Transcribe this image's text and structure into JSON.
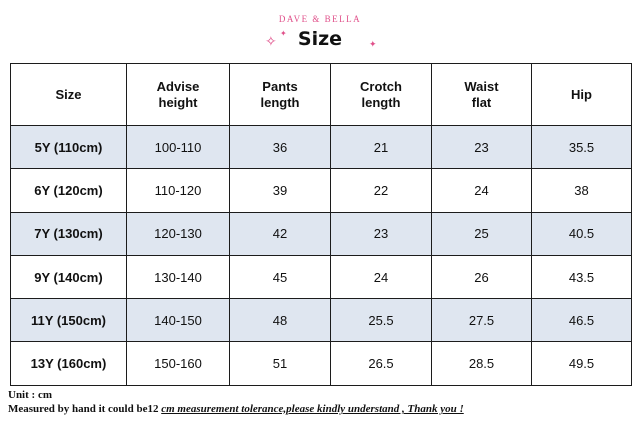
{
  "header": {
    "brand": "DAVE & BELLA",
    "title": "Size",
    "accent_color": "#e0508a"
  },
  "table": {
    "columns": [
      [
        "Size"
      ],
      [
        "Advise",
        "height"
      ],
      [
        "Pants",
        "length"
      ],
      [
        "Crotch",
        "length"
      ],
      [
        "Waist",
        "flat"
      ],
      [
        "Hip"
      ]
    ],
    "rows": [
      [
        "5Y (110cm)",
        "100-110",
        "36",
        "21",
        "23",
        "35.5"
      ],
      [
        "6Y (120cm)",
        "110-120",
        "39",
        "22",
        "24",
        "38"
      ],
      [
        "7Y (130cm)",
        "120-130",
        "42",
        "23",
        "25",
        "40.5"
      ],
      [
        "9Y (140cm)",
        "130-140",
        "45",
        "24",
        "26",
        "43.5"
      ],
      [
        "11Y (150cm)",
        "140-150",
        "48",
        "25.5",
        "27.5",
        "46.5"
      ],
      [
        "13Y (160cm)",
        "150-160",
        "51",
        "26.5",
        "28.5",
        "49.5"
      ]
    ],
    "shade_color": "#dfe6f0"
  },
  "footer": {
    "unit": "Unit : cm",
    "measure_prefix": "Measured by hand it could be12 ",
    "measure_note": "cm measurement tolerance,please kindly understand , Thank you !"
  }
}
